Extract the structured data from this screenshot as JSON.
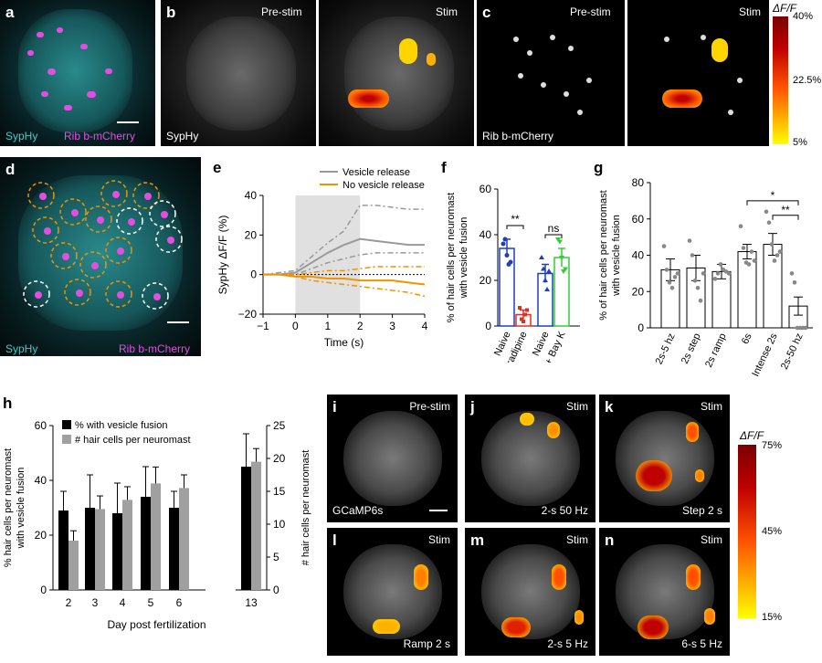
{
  "panels": {
    "a": {
      "label": "a",
      "left_text": "SypHy",
      "right_text": "Rib b-mCherry"
    },
    "b": {
      "label": "b",
      "top_left": "Pre-stim",
      "top_right": "Stim",
      "bottom_text": "SypHy"
    },
    "c": {
      "label": "c",
      "top_left": "Pre-stim",
      "top_right": "Stim",
      "bottom_text": "Rib b-mCherry"
    },
    "c_colorbar": {
      "title": "ΔF/F",
      "ticks": [
        "40%",
        "22.5%",
        "5%"
      ],
      "colors": [
        "#7a0000",
        "#ff6000",
        "#ffff00"
      ]
    },
    "d": {
      "label": "d",
      "left_text": "SypHy",
      "right_text": "Rib b-mCherry"
    },
    "e": {
      "label": "e"
    },
    "f": {
      "label": "f"
    },
    "g": {
      "label": "g"
    },
    "h": {
      "label": "h"
    },
    "i": {
      "label": "i",
      "top": "Pre-stim",
      "bottom": "GCaMP6s"
    },
    "j": {
      "label": "j",
      "top": "Stim",
      "bottom": "2-s 50 Hz"
    },
    "k": {
      "label": "k",
      "top": "Stim",
      "bottom": "Step 2 s"
    },
    "l": {
      "label": "l",
      "top": "Stim",
      "bottom": "Ramp 2 s"
    },
    "m": {
      "label": "m",
      "top": "Stim",
      "bottom": "2-s 5 Hz"
    },
    "n": {
      "label": "n",
      "top": "Stim",
      "bottom": "6-s 5 Hz"
    },
    "n_colorbar": {
      "title": "ΔF/F",
      "ticks": [
        "75%",
        "45%",
        "15%"
      ]
    }
  },
  "chart_data": [
    {
      "id": "e",
      "type": "line",
      "ylabel": "SypHy ΔF/F (%)",
      "xlabel": "Time (s)",
      "xlim": [
        -1,
        4
      ],
      "ylim": [
        -20,
        40
      ],
      "xticks": [
        "−1",
        "0",
        "1",
        "2",
        "3",
        "4"
      ],
      "yticks": [
        "−20",
        "0",
        "20",
        "40"
      ],
      "stim_window": [
        0,
        2
      ],
      "colors": {
        "Vesicle release": "#999999",
        "No vesicle release": "#f39200"
      },
      "series": [
        {
          "name": "Vesicle release",
          "x": [
            -1,
            -0.5,
            0,
            0.5,
            1,
            1.5,
            2,
            2.5,
            3,
            3.5,
            4
          ],
          "values": [
            0,
            0,
            1,
            6,
            11,
            15,
            18,
            17,
            16,
            15,
            15
          ]
        },
        {
          "name": "Vesicle release",
          "x": [
            -1,
            -0.5,
            0,
            0.5,
            1,
            1.5,
            2,
            2.5,
            3,
            3.5,
            4
          ],
          "values": [
            0,
            1,
            2,
            9,
            16,
            22,
            35,
            35,
            34,
            33,
            33
          ]
        },
        {
          "name": "Vesicle release",
          "x": [
            -1,
            -0.5,
            0,
            0.5,
            1,
            1.5,
            2,
            2.5,
            3,
            3.5,
            4
          ],
          "values": [
            0,
            0,
            0,
            3,
            6,
            8,
            10,
            11,
            11,
            11,
            11
          ]
        },
        {
          "name": "No vesicle release",
          "x": [
            -1,
            -0.5,
            0,
            0.5,
            1,
            1.5,
            2,
            2.5,
            3,
            3.5,
            4
          ],
          "values": [
            0,
            0,
            0,
            1,
            2,
            2,
            3,
            4,
            4,
            4,
            4
          ]
        },
        {
          "name": "No vesicle release",
          "x": [
            -1,
            -0.5,
            0,
            0.5,
            1,
            1.5,
            2,
            2.5,
            3,
            3.5,
            4
          ],
          "values": [
            0,
            0,
            -1,
            -1,
            -2,
            -2,
            -3,
            -3,
            -3,
            -4,
            -5
          ]
        },
        {
          "name": "No vesicle release",
          "x": [
            -1,
            -0.5,
            0,
            0.5,
            1,
            1.5,
            2,
            2.5,
            3,
            3.5,
            4
          ],
          "values": [
            0,
            0,
            -1,
            -3,
            -4,
            -5,
            -6,
            -7,
            -8,
            -9,
            -11
          ]
        }
      ]
    },
    {
      "id": "f",
      "type": "bar",
      "ylabel": "% of hair cells per neuromast with vesicle fusion",
      "ylim": [
        0,
        60
      ],
      "yticks": [
        "0",
        "20",
        "40",
        "60"
      ],
      "categories": [
        "Naive",
        "+ isradipine",
        "Naive",
        "+ Bay K"
      ],
      "values": [
        34,
        5,
        23,
        30
      ],
      "errors": [
        4,
        2,
        4,
        4
      ],
      "colors": [
        "#1f3fbf",
        "#e03020",
        "#1f3fbf",
        "#33cc33"
      ],
      "points": [
        [
          36,
          38,
          31,
          27,
          28
        ],
        [
          8,
          3,
          2,
          5,
          7
        ],
        [
          30,
          25,
          20,
          16,
          24
        ],
        [
          38,
          37,
          30,
          24,
          25
        ]
      ],
      "significance": [
        {
          "pair": [
            0,
            1
          ],
          "text": "**"
        },
        {
          "pair": [
            2,
            3
          ],
          "text": "ns"
        }
      ]
    },
    {
      "id": "g",
      "type": "bar",
      "ylabel": "% of hair cells per neuromast with vesicle fusion",
      "ylim": [
        0,
        80
      ],
      "yticks": [
        "0",
        "20",
        "40",
        "60",
        "80"
      ],
      "categories": [
        "2s-5 hz",
        "2s step",
        "2s ramp",
        "6s",
        "Intense 2s",
        "2s-50 hz"
      ],
      "values": [
        32,
        33,
        31,
        42,
        46,
        12
      ],
      "errors": [
        6,
        7,
        4,
        4,
        6,
        5
      ],
      "points": [
        [
          45,
          32,
          25,
          22,
          28,
          30
        ],
        [
          48,
          40,
          26,
          22,
          15,
          30
        ],
        [
          27,
          30,
          35,
          32,
          31,
          30
        ],
        [
          56,
          44,
          36,
          35,
          42,
          37
        ],
        [
          64,
          58,
          46,
          37,
          40,
          42
        ],
        [
          30,
          25,
          0,
          0,
          0,
          0
        ]
      ],
      "significance": [
        {
          "pair": [
            3,
            5
          ],
          "text": "*"
        },
        {
          "pair": [
            4,
            5
          ],
          "text": "**"
        }
      ]
    },
    {
      "id": "h",
      "type": "bar",
      "ylabel": "% hair cells per neuromast with vesicle fusion",
      "y2label": "# hair cells per neuromast",
      "xlabel": "Day post fertilization",
      "ylim": [
        0,
        60
      ],
      "y2lim": [
        0,
        25
      ],
      "yticks": [
        "0",
        "20",
        "40",
        "60"
      ],
      "y2ticks": [
        "0",
        "5",
        "10",
        "15",
        "20",
        "25"
      ],
      "categories": [
        "2",
        "3",
        "4",
        "5",
        "6",
        "13"
      ],
      "series": [
        {
          "name": "% with vesicle fusion",
          "color": "#000000",
          "values": [
            29,
            30,
            28,
            34,
            30,
            45
          ],
          "errors": [
            7,
            12,
            11,
            11,
            6,
            12
          ]
        },
        {
          "name": "# hair cells per neuromast",
          "color": "#a0a0a0",
          "values": [
            7.5,
            12.3,
            13.7,
            16.2,
            15.5,
            19.5
          ],
          "errors": [
            1.5,
            2,
            2,
            2.5,
            2,
            2
          ]
        }
      ]
    }
  ]
}
